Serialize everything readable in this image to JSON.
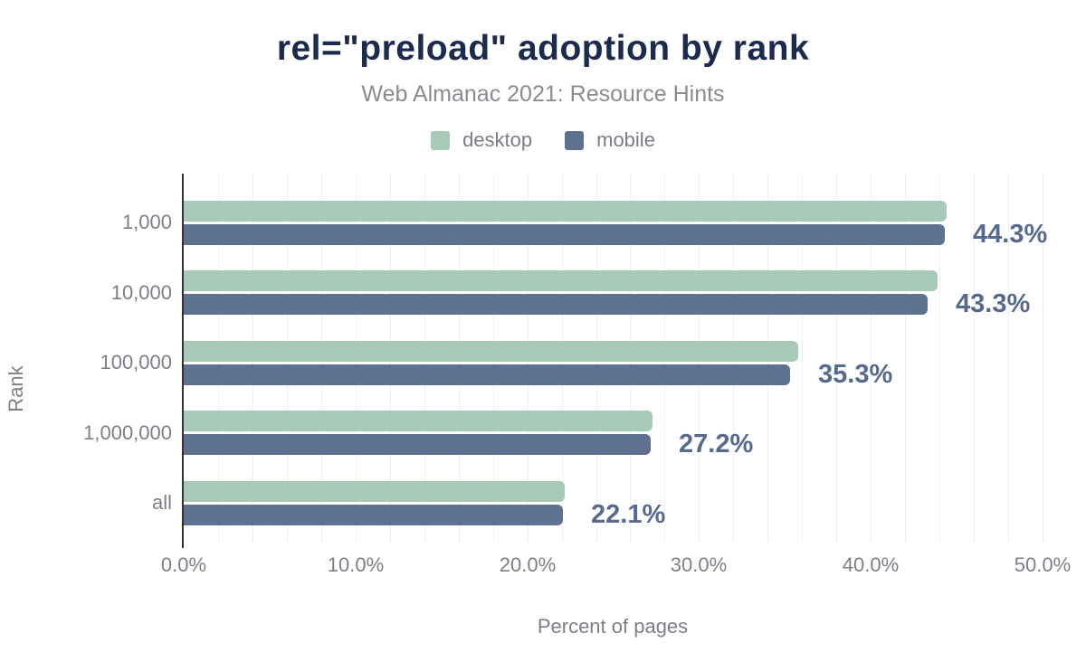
{
  "title": "rel=\"preload\" adoption by rank",
  "subtitle": "Web Almanac 2021: Resource Hints",
  "legend": [
    {
      "name": "desktop",
      "color": "#a6cab7"
    },
    {
      "name": "mobile",
      "color": "#5e7190"
    }
  ],
  "chart_data": {
    "type": "bar",
    "orientation": "horizontal",
    "title": "rel=\"preload\" adoption by rank",
    "subtitle": "Web Almanac 2021: Resource Hints",
    "categories": [
      "1,000",
      "10,000",
      "100,000",
      "1,000,000",
      "all"
    ],
    "series": [
      {
        "name": "desktop",
        "color": "#a6cab7",
        "values": [
          44.4,
          43.9,
          35.8,
          27.3,
          22.2
        ]
      },
      {
        "name": "mobile",
        "color": "#5e7190",
        "values": [
          44.3,
          43.3,
          35.3,
          27.2,
          22.1
        ]
      }
    ],
    "data_labels": [
      "44.3%",
      "43.3%",
      "35.3%",
      "27.2%",
      "22.1%"
    ],
    "data_labels_series": "mobile",
    "xlabel": "Percent of pages",
    "ylabel": "Rank",
    "x_ticks": [
      "0.0%",
      "10.0%",
      "20.0%",
      "30.0%",
      "40.0%",
      "50.0%"
    ],
    "x_tick_values": [
      0,
      10,
      20,
      30,
      40,
      50
    ],
    "xlim": [
      0,
      50
    ],
    "grid": "vertical minor gridlines every 2%",
    "legend_position": "top"
  },
  "colors": {
    "title": "#1b2b4d",
    "subtitle": "#898c91",
    "legend_text": "#797d84",
    "axis_text": "#7b7f86",
    "data_label": "#56698e",
    "gridline": "#f0f0f2",
    "axis_line": "#333333",
    "background": "#ffffff"
  }
}
